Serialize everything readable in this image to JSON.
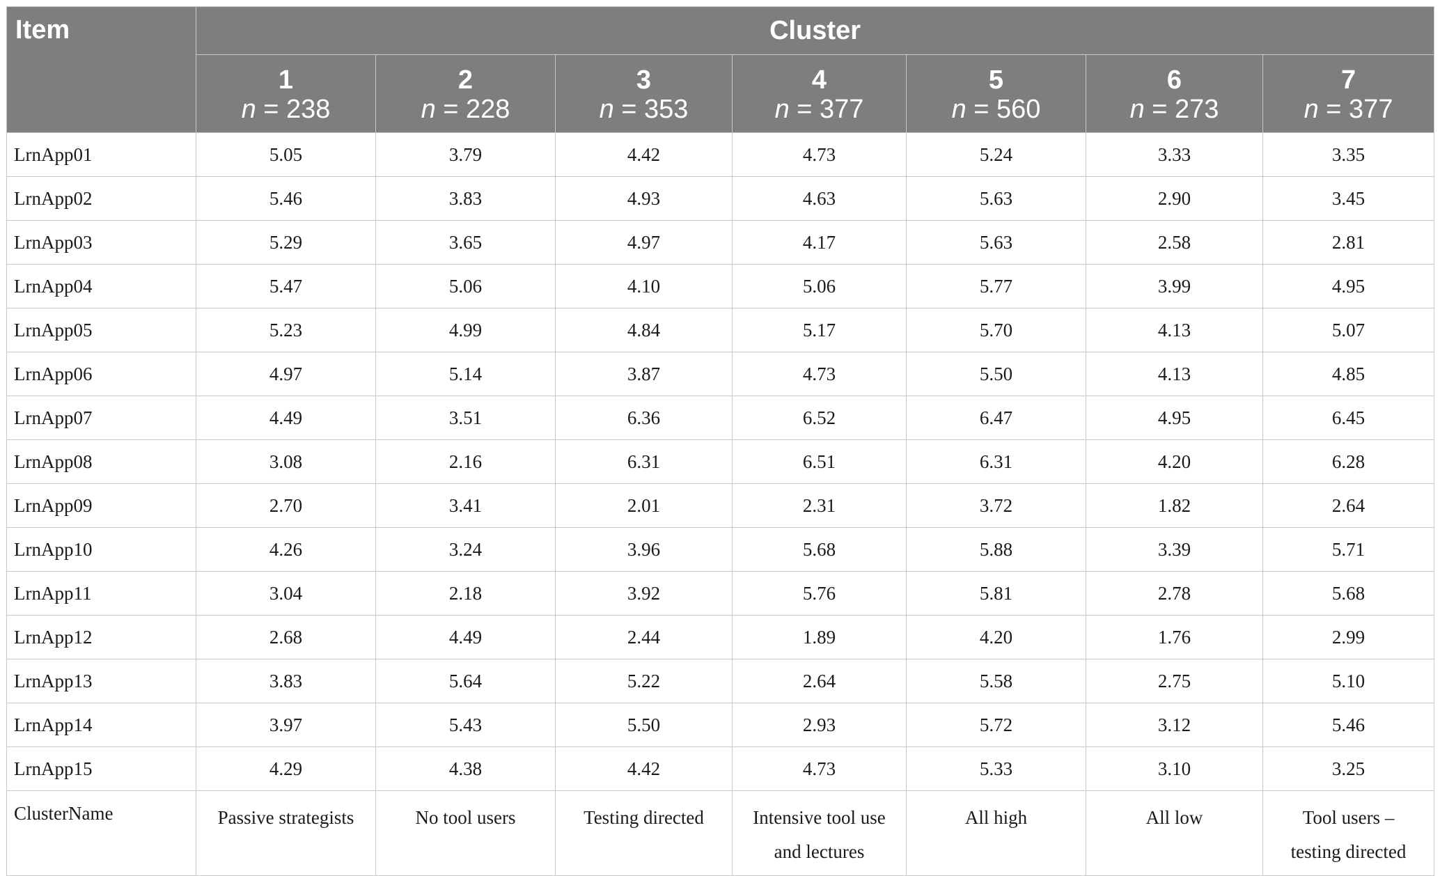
{
  "header": {
    "item_label": "Item",
    "cluster_label": "Cluster",
    "n_prefix": "n",
    "clusters": [
      {
        "number": "1",
        "n": "238"
      },
      {
        "number": "2",
        "n": "228"
      },
      {
        "number": "3",
        "n": "353"
      },
      {
        "number": "4",
        "n": "377"
      },
      {
        "number": "5",
        "n": "560"
      },
      {
        "number": "6",
        "n": "273"
      },
      {
        "number": "7",
        "n": "377"
      }
    ]
  },
  "rows": [
    {
      "item": "LrnApp01",
      "values": [
        "5.05",
        "3.79",
        "4.42",
        "4.73",
        "5.24",
        "3.33",
        "3.35"
      ]
    },
    {
      "item": "LrnApp02",
      "values": [
        "5.46",
        "3.83",
        "4.93",
        "4.63",
        "5.63",
        "2.90",
        "3.45"
      ]
    },
    {
      "item": "LrnApp03",
      "values": [
        "5.29",
        "3.65",
        "4.97",
        "4.17",
        "5.63",
        "2.58",
        "2.81"
      ]
    },
    {
      "item": "LrnApp04",
      "values": [
        "5.47",
        "5.06",
        "4.10",
        "5.06",
        "5.77",
        "3.99",
        "4.95"
      ]
    },
    {
      "item": "LrnApp05",
      "values": [
        "5.23",
        "4.99",
        "4.84",
        "5.17",
        "5.70",
        "4.13",
        "5.07"
      ]
    },
    {
      "item": "LrnApp06",
      "values": [
        "4.97",
        "5.14",
        "3.87",
        "4.73",
        "5.50",
        "4.13",
        "4.85"
      ]
    },
    {
      "item": "LrnApp07",
      "values": [
        "4.49",
        "3.51",
        "6.36",
        "6.52",
        "6.47",
        "4.95",
        "6.45"
      ]
    },
    {
      "item": "LrnApp08",
      "values": [
        "3.08",
        "2.16",
        "6.31",
        "6.51",
        "6.31",
        "4.20",
        "6.28"
      ]
    },
    {
      "item": "LrnApp09",
      "values": [
        "2.70",
        "3.41",
        "2.01",
        "2.31",
        "3.72",
        "1.82",
        "2.64"
      ]
    },
    {
      "item": "LrnApp10",
      "values": [
        "4.26",
        "3.24",
        "3.96",
        "5.68",
        "5.88",
        "3.39",
        "5.71"
      ]
    },
    {
      "item": "LrnApp11",
      "values": [
        "3.04",
        "2.18",
        "3.92",
        "5.76",
        "5.81",
        "2.78",
        "5.68"
      ]
    },
    {
      "item": "LrnApp12",
      "values": [
        "2.68",
        "4.49",
        "2.44",
        "1.89",
        "4.20",
        "1.76",
        "2.99"
      ]
    },
    {
      "item": "LrnApp13",
      "values": [
        "3.83",
        "5.64",
        "5.22",
        "2.64",
        "5.58",
        "2.75",
        "5.10"
      ]
    },
    {
      "item": "LrnApp14",
      "values": [
        "3.97",
        "5.43",
        "5.50",
        "2.93",
        "5.72",
        "3.12",
        "5.46"
      ]
    },
    {
      "item": "LrnApp15",
      "values": [
        "4.29",
        "4.38",
        "4.42",
        "4.73",
        "5.33",
        "3.10",
        "3.25"
      ]
    }
  ],
  "names_row": {
    "item": "ClusterName",
    "names": [
      {
        "line1": "Passive strategists",
        "line2": ""
      },
      {
        "line1": "No tool users",
        "line2": ""
      },
      {
        "line1": "Testing directed",
        "line2": ""
      },
      {
        "line1": "Intensive tool use",
        "line2": "and lectures"
      },
      {
        "line1": "All high",
        "line2": ""
      },
      {
        "line1": "All low",
        "line2": ""
      },
      {
        "line1": "Tool users –",
        "line2": "testing directed"
      }
    ]
  },
  "colors": {
    "header_bg": "#7d7f7d",
    "header_text": "#ffffff",
    "border": "#c8c8c8",
    "body_text": "#1a1a1a"
  }
}
